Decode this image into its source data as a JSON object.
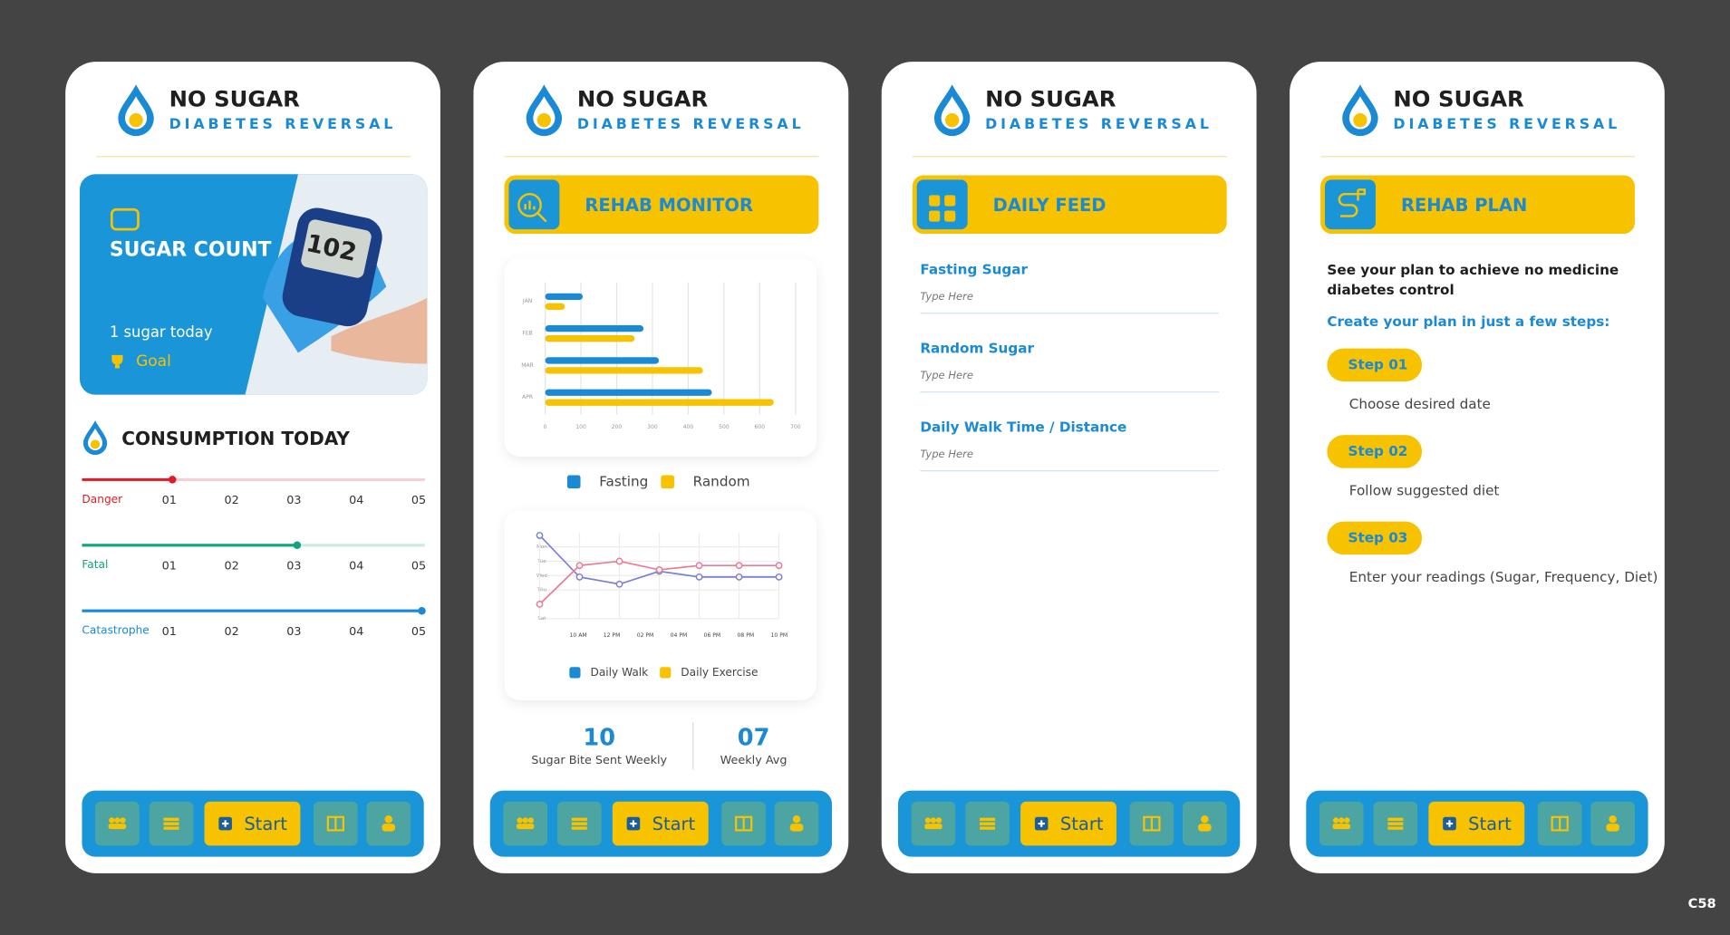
{
  "brand": {
    "name": "NO SUGAR",
    "tagline": "DIABETES REVERSAL"
  },
  "nav": {
    "start": "Start"
  },
  "badge": "C58",
  "screens": [
    {
      "sugar_count": {
        "title": "SUGAR COUNT",
        "today": "1 sugar today",
        "goal": "Goal",
        "meter_reading": "102"
      },
      "consumption": {
        "title": "CONSUMPTION TODAY",
        "xlim": [
          -0.4,
          5.1
        ],
        "ticks": [
          {
            "value": 1,
            "label": "01"
          },
          {
            "value": 2,
            "label": "02"
          },
          {
            "value": 3,
            "label": "03"
          },
          {
            "value": 4,
            "label": "04"
          },
          {
            "value": 5,
            "label": "05"
          }
        ],
        "sliders": [
          {
            "label": "Danger",
            "color": "#e01b24",
            "value": 1.05
          },
          {
            "label": "Fatal",
            "color": "#12a37f",
            "value": 3.05
          },
          {
            "label": "Catastrophe",
            "color": "#1a8ad4",
            "value": 5.05
          }
        ]
      }
    },
    {
      "title": "REHAB MONITOR",
      "stats": [
        {
          "value": "10",
          "label": "Sugar Bite Sent Weekly"
        },
        {
          "value": "07",
          "label": "Weekly Avg"
        }
      ]
    },
    {
      "title": "DAILY FEED",
      "fields": [
        {
          "label": "Fasting Sugar",
          "placeholder": "Type Here"
        },
        {
          "label": "Random Sugar",
          "placeholder": "Type Here"
        },
        {
          "label": "Daily Walk Time / Distance",
          "placeholder": "Type Here"
        }
      ]
    },
    {
      "title": "REHAB PLAN",
      "intro": "See your plan to achieve no medicine diabetes control",
      "subtitle": "Create your plan in just a few steps:",
      "steps": [
        {
          "label": "Step 01",
          "text": "Choose desired date"
        },
        {
          "label": "Step 02",
          "text": "Follow suggested diet"
        },
        {
          "label": "Step 03",
          "text": "Enter your readings (Sugar, Frequency, Diet)"
        }
      ]
    }
  ],
  "chart_data": [
    {
      "type": "bar",
      "orientation": "horizontal",
      "categories": [
        "JAN",
        "FEB",
        "MAR",
        "APR"
      ],
      "series": [
        {
          "name": "Fasting",
          "color": "#1a8ad4",
          "values": [
            105,
            275,
            318,
            466
          ]
        },
        {
          "name": "Random",
          "color": "#f7c200",
          "values": [
            55,
            250,
            441,
            639
          ]
        }
      ],
      "xlim": [
        0,
        700
      ],
      "xticks": [
        0,
        100,
        200,
        300,
        400,
        500,
        600,
        700
      ],
      "grid": true
    },
    {
      "type": "line",
      "categories": [
        "10 AM",
        "12 PM",
        "02 PM",
        "04 PM",
        "06 PM",
        "08 PM",
        "10 PM"
      ],
      "series": [
        {
          "name": "Daily Walk",
          "color": "#7a7fd8",
          "legend_color": "#1a8ad4",
          "values": [
            5.8,
            2.9,
            2.4,
            3.3,
            2.9,
            2.9,
            2.9
          ]
        },
        {
          "name": "Daily Exercise",
          "color": "#ea7a96",
          "legend_color": "#f7c200",
          "values": [
            1,
            3.7,
            4,
            3.4,
            3.7,
            3.7,
            3.7
          ]
        }
      ],
      "ylim": [
        0,
        6
      ],
      "yticks": [
        {
          "value": 5,
          "label": "Mon"
        },
        {
          "value": 4,
          "label": "Tue"
        },
        {
          "value": 3,
          "label": "Wed"
        },
        {
          "value": 2,
          "label": "Thu"
        },
        {
          "value": 0,
          "label": "Sat"
        }
      ],
      "grid": true
    }
  ]
}
